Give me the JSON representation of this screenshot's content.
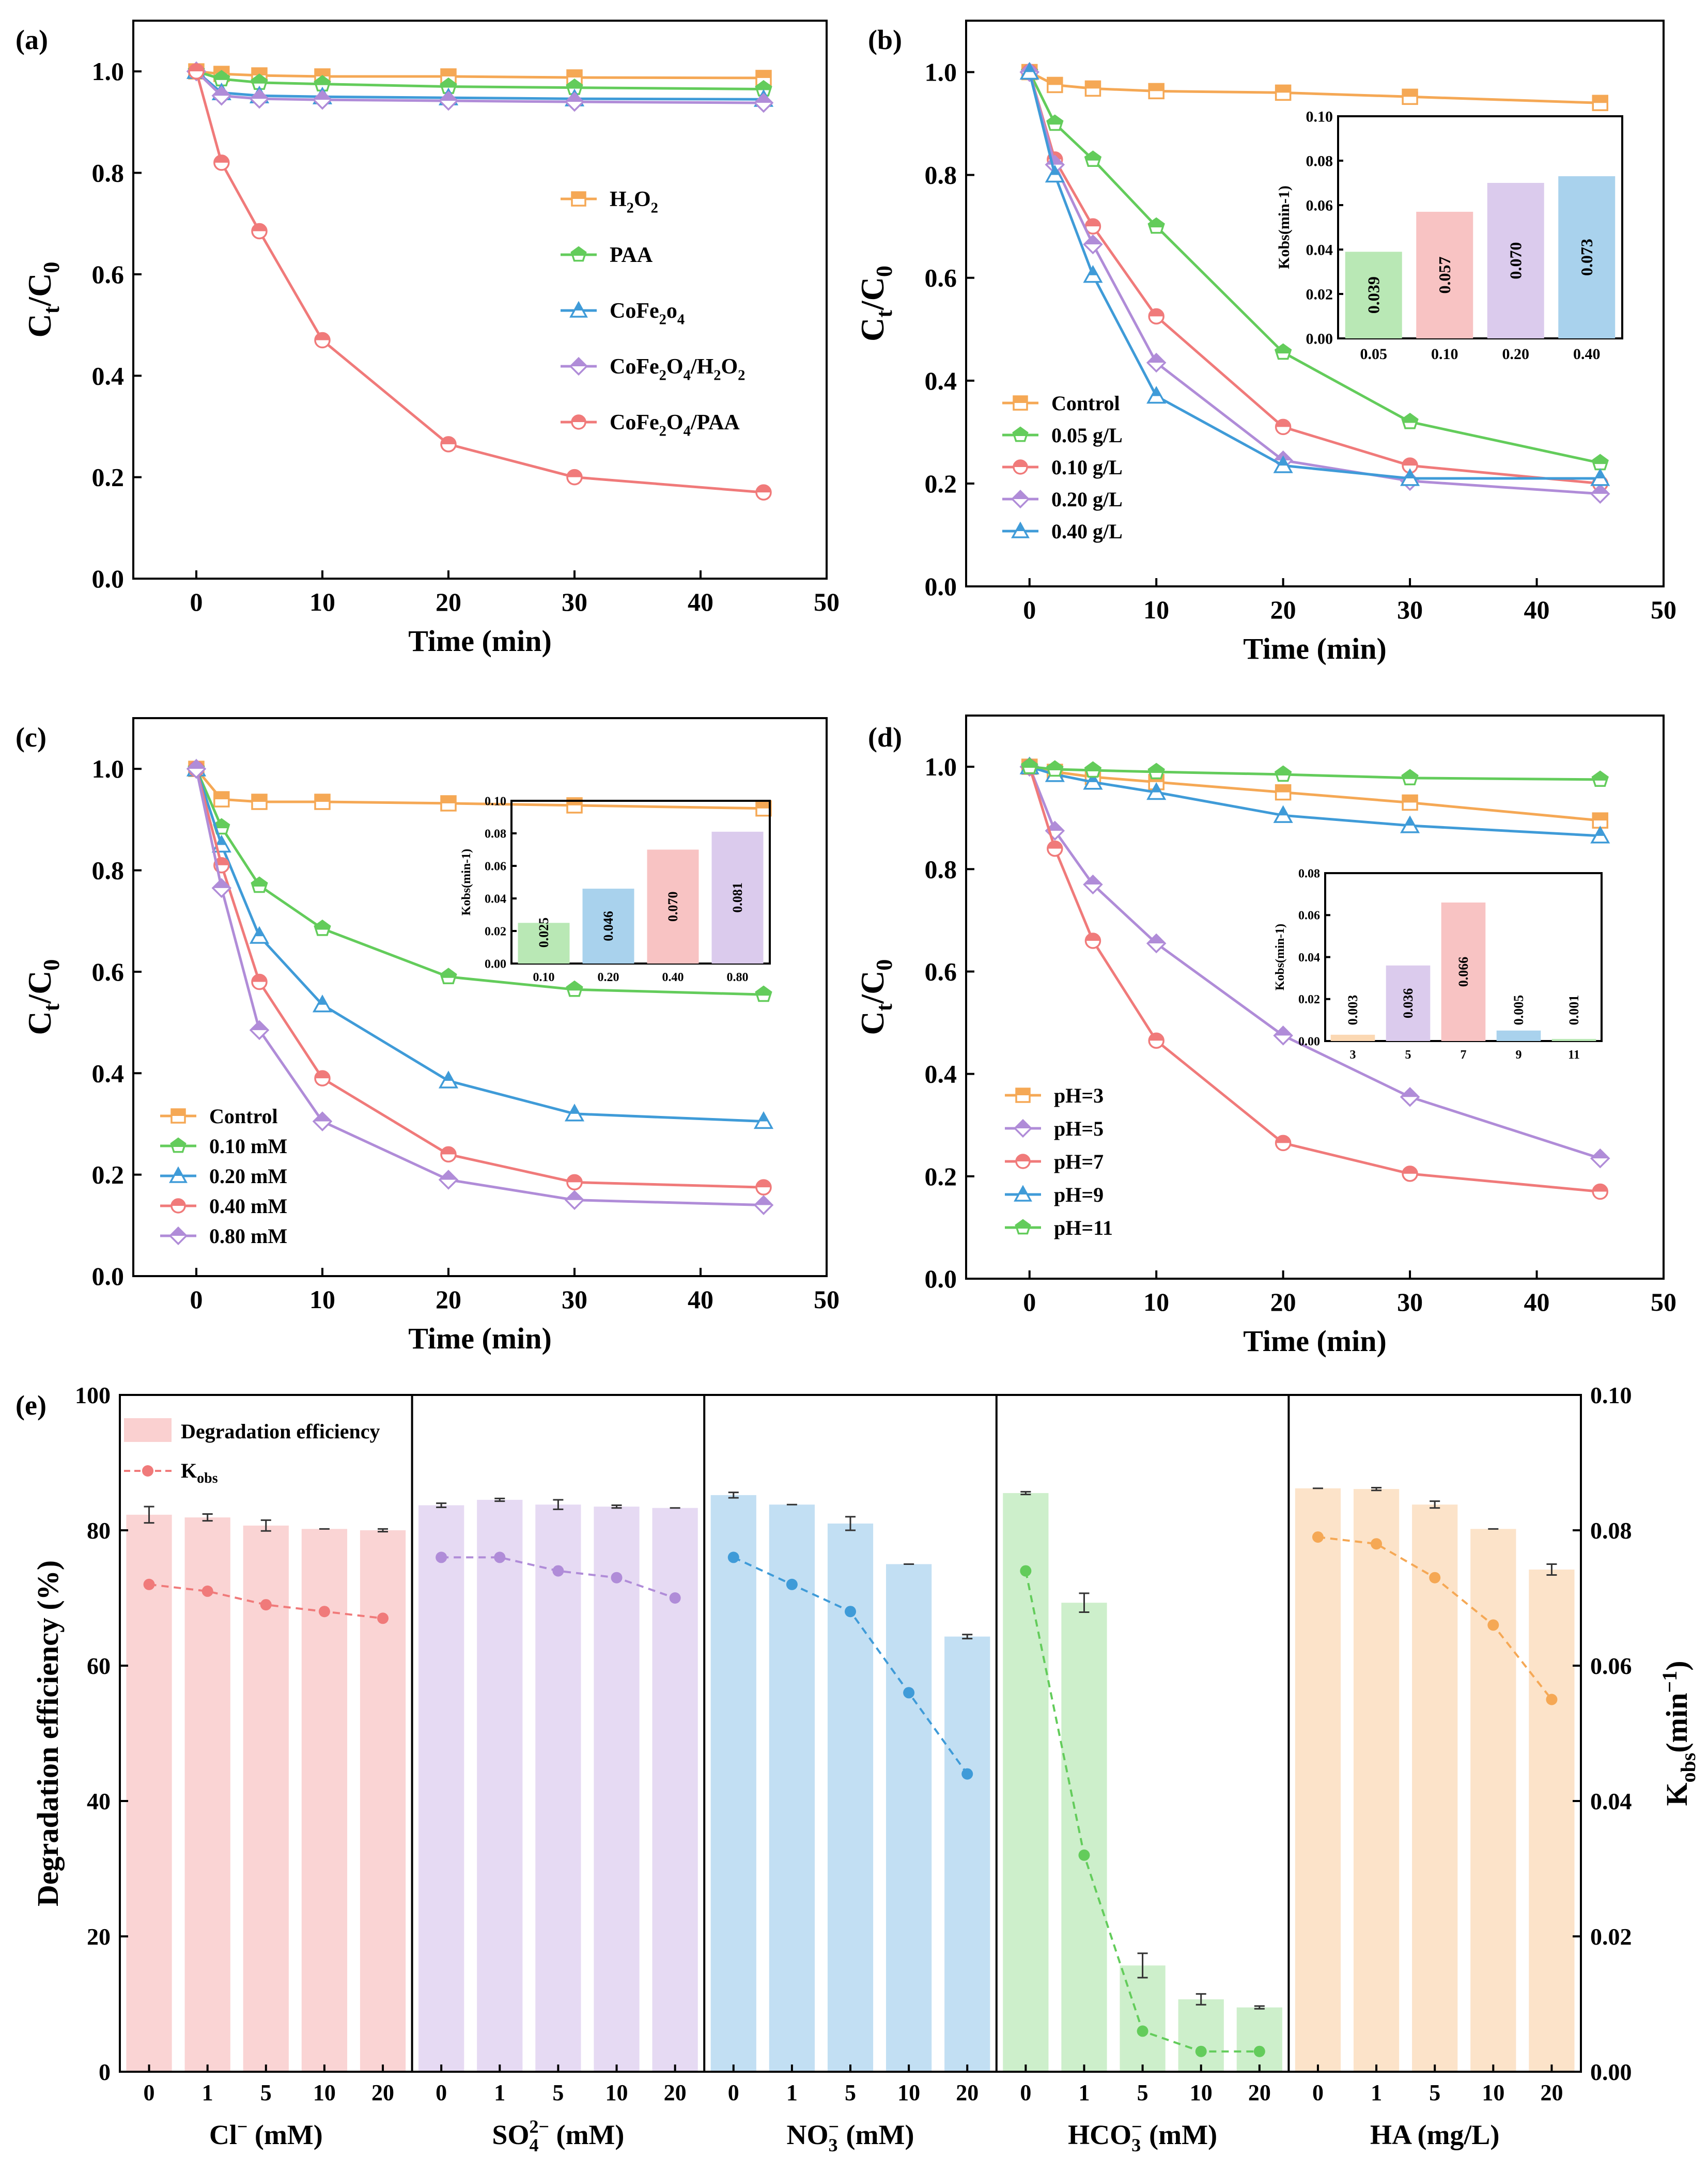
{
  "colors": {
    "orange": "#F5A855",
    "green": "#63CC5B",
    "blue": "#3F9BD8",
    "purple": "#B08CD8",
    "red": "#F07A7A"
  },
  "chart_data": [
    {
      "panel": "(a)",
      "type": "line",
      "ylabel": "Ct/C0",
      "xlabel": "Time (min)",
      "xlim": [
        -5,
        50
      ],
      "ylim": [
        0.0,
        1.1
      ],
      "xticks": [
        "0",
        "10",
        "20",
        "30",
        "40",
        "50"
      ],
      "yticks": [
        "0.0",
        "0.2",
        "0.4",
        "0.6",
        "0.8",
        "1.0"
      ],
      "x": [
        0,
        2,
        5,
        10,
        20,
        30,
        45
      ],
      "legend_position": "center-right",
      "series": [
        {
          "name": "H2O2",
          "color": "orange",
          "marker": "square",
          "values": [
            1.0,
            0.995,
            0.992,
            0.99,
            0.99,
            0.988,
            0.987
          ]
        },
        {
          "name": "PAA",
          "color": "green",
          "marker": "pentagon",
          "values": [
            1.0,
            0.985,
            0.978,
            0.975,
            0.97,
            0.968,
            0.965
          ]
        },
        {
          "name": "CoFe2o4",
          "color": "blue",
          "marker": "triangle",
          "values": [
            1.0,
            0.958,
            0.952,
            0.95,
            0.948,
            0.946,
            0.945
          ]
        },
        {
          "name": "CoFe2O4/H2O2",
          "color": "purple",
          "marker": "diamond",
          "values": [
            1.0,
            0.952,
            0.946,
            0.944,
            0.942,
            0.94,
            0.938
          ]
        },
        {
          "name": "CoFe2O4/PAA",
          "color": "red",
          "marker": "circle",
          "values": [
            1.0,
            0.82,
            0.685,
            0.47,
            0.265,
            0.2,
            0.17
          ]
        }
      ]
    },
    {
      "panel": "(b)",
      "type": "line",
      "ylabel": "Ct/C0",
      "xlabel": "Time (min)",
      "xlim": [
        -5,
        50
      ],
      "ylim": [
        0.0,
        1.1
      ],
      "xticks": [
        "0",
        "10",
        "20",
        "30",
        "40",
        "50"
      ],
      "yticks": [
        "0.0",
        "0.2",
        "0.4",
        "0.6",
        "0.8",
        "1.0"
      ],
      "x": [
        0,
        2,
        5,
        10,
        20,
        30,
        45
      ],
      "legend_position": "bottom-left",
      "series": [
        {
          "name": "Control",
          "color": "orange",
          "marker": "square",
          "values": [
            1.0,
            0.975,
            0.968,
            0.963,
            0.96,
            0.952,
            0.94
          ]
        },
        {
          "name": "0.05 g/L",
          "color": "green",
          "marker": "pentagon",
          "values": [
            1.0,
            0.9,
            0.83,
            0.7,
            0.455,
            0.32,
            0.24
          ]
        },
        {
          "name": "0.10 g/L",
          "color": "red",
          "marker": "circle",
          "values": [
            1.0,
            0.83,
            0.7,
            0.525,
            0.31,
            0.235,
            0.2
          ]
        },
        {
          "name": "0.20 g/L",
          "color": "purple",
          "marker": "diamond",
          "values": [
            1.0,
            0.82,
            0.665,
            0.435,
            0.245,
            0.205,
            0.18
          ]
        },
        {
          "name": "0.40 g/L",
          "color": "blue",
          "marker": "triangle",
          "values": [
            1.0,
            0.8,
            0.605,
            0.37,
            0.235,
            0.21,
            0.21
          ]
        }
      ],
      "inset": {
        "type": "bar",
        "ylabel": "Kobs(min-1)",
        "ylim": [
          0,
          0.1
        ],
        "yticks": [
          "0.00",
          "0.02",
          "0.04",
          "0.06",
          "0.08",
          "0.10"
        ],
        "categories": [
          "0.05",
          "0.10",
          "0.20",
          "0.40"
        ],
        "values": [
          0.039,
          0.057,
          0.07,
          0.073
        ],
        "labels": [
          "0.039",
          "0.057",
          "0.070",
          "0.073"
        ],
        "colors": [
          "green",
          "red",
          "purple",
          "blue"
        ]
      }
    },
    {
      "panel": "(c)",
      "type": "line",
      "ylabel": "Ct/C0",
      "xlabel": "Time (min)",
      "xlim": [
        -5,
        50
      ],
      "ylim": [
        0.0,
        1.1
      ],
      "xticks": [
        "0",
        "10",
        "20",
        "30",
        "40",
        "50"
      ],
      "yticks": [
        "0.0",
        "0.2",
        "0.4",
        "0.6",
        "0.8",
        "1.0"
      ],
      "x": [
        0,
        2,
        5,
        10,
        20,
        30,
        45
      ],
      "legend_position": "bottom-left",
      "series": [
        {
          "name": "Control",
          "color": "orange",
          "marker": "square",
          "values": [
            1.0,
            0.94,
            0.935,
            0.935,
            0.932,
            0.928,
            0.922
          ]
        },
        {
          "name": "0.10 mM",
          "color": "green",
          "marker": "pentagon",
          "values": [
            1.0,
            0.885,
            0.77,
            0.685,
            0.59,
            0.565,
            0.555
          ]
        },
        {
          "name": "0.20 mM",
          "color": "blue",
          "marker": "triangle",
          "values": [
            1.0,
            0.85,
            0.67,
            0.535,
            0.385,
            0.32,
            0.305
          ]
        },
        {
          "name": "0.40 mM",
          "color": "red",
          "marker": "circle",
          "values": [
            1.0,
            0.81,
            0.58,
            0.39,
            0.24,
            0.185,
            0.175
          ]
        },
        {
          "name": "0.80 mM",
          "color": "purple",
          "marker": "diamond",
          "values": [
            1.0,
            0.765,
            0.485,
            0.305,
            0.19,
            0.15,
            0.14
          ]
        }
      ],
      "inset": {
        "type": "bar",
        "ylabel": "Kobs(min-1)",
        "ylim": [
          0,
          0.1
        ],
        "yticks": [
          "0.00",
          "0.02",
          "0.04",
          "0.06",
          "0.08",
          "0.10"
        ],
        "categories": [
          "0.10",
          "0.20",
          "0.40",
          "0.80"
        ],
        "values": [
          0.025,
          0.046,
          0.07,
          0.081
        ],
        "labels": [
          "0.025",
          "0.046",
          "0.070",
          "0.081"
        ],
        "colors": [
          "green",
          "blue",
          "red",
          "purple"
        ]
      }
    },
    {
      "panel": "(d)",
      "type": "line",
      "ylabel": "Ct/C0",
      "xlabel": "Time (min)",
      "xlim": [
        -5,
        50
      ],
      "ylim": [
        0.0,
        1.1
      ],
      "xticks": [
        "0",
        "10",
        "20",
        "30",
        "40",
        "50"
      ],
      "yticks": [
        "0.0",
        "0.2",
        "0.4",
        "0.6",
        "0.8",
        "1.0"
      ],
      "x": [
        0,
        2,
        5,
        10,
        20,
        30,
        45
      ],
      "legend_position": "bottom-left",
      "series": [
        {
          "name": "pH=3",
          "color": "orange",
          "marker": "square",
          "values": [
            1.0,
            0.99,
            0.98,
            0.97,
            0.95,
            0.93,
            0.895
          ]
        },
        {
          "name": "pH=5",
          "color": "purple",
          "marker": "diamond",
          "values": [
            1.0,
            0.875,
            0.77,
            0.655,
            0.475,
            0.355,
            0.235
          ]
        },
        {
          "name": "pH=7",
          "color": "red",
          "marker": "circle",
          "values": [
            1.0,
            0.84,
            0.66,
            0.465,
            0.265,
            0.205,
            0.17
          ]
        },
        {
          "name": "pH=9",
          "color": "blue",
          "marker": "triangle",
          "values": [
            1.0,
            0.985,
            0.97,
            0.95,
            0.905,
            0.885,
            0.865
          ]
        },
        {
          "name": "pH=11",
          "color": "green",
          "marker": "pentagon",
          "values": [
            1.0,
            0.995,
            0.993,
            0.99,
            0.985,
            0.978,
            0.975
          ]
        }
      ],
      "inset": {
        "type": "bar",
        "ylabel": "Kobs(min-1)",
        "ylim": [
          0,
          0.08
        ],
        "yticks": [
          "0.00",
          "0.02",
          "0.04",
          "0.06",
          "0.08"
        ],
        "categories": [
          "3",
          "5",
          "7",
          "9",
          "11"
        ],
        "values": [
          0.003,
          0.036,
          0.066,
          0.005,
          0.001
        ],
        "labels": [
          "0.003",
          "0.036",
          "0.066",
          "0.005",
          "0.001"
        ],
        "colors": [
          "orange",
          "purple",
          "red",
          "blue",
          "green"
        ]
      }
    },
    {
      "panel": "(e)",
      "type": "bar",
      "ylabel": "Degradation efficiency (%)",
      "ylabel_right": "Kobs(min−1)",
      "ylim": [
        0,
        100
      ],
      "ylim_right": [
        0,
        0.1
      ],
      "yticks": [
        "0",
        "20",
        "40",
        "60",
        "80",
        "100"
      ],
      "yticks_right": [
        "0.00",
        "0.02",
        "0.04",
        "0.06",
        "0.08",
        "0.10"
      ],
      "legend": [
        "Degradation efficiency",
        "Kobs"
      ],
      "groups": [
        {
          "label": "Cl⁻ (mM)",
          "color": "red",
          "categories": [
            "0",
            "1",
            "5",
            "10",
            "20"
          ],
          "efficiency": [
            82.3,
            81.9,
            80.7,
            80.2,
            80.0
          ],
          "eff_err": [
            1.2,
            0.5,
            0.8,
            0,
            0.2
          ],
          "kobs": [
            0.072,
            0.071,
            0.069,
            0.068,
            0.067
          ]
        },
        {
          "label": "SO₄²⁻ (mM)",
          "color": "purple",
          "categories": [
            "0",
            "1",
            "5",
            "10",
            "20"
          ],
          "efficiency": [
            83.7,
            84.5,
            83.8,
            83.5,
            83.3
          ],
          "eff_err": [
            0.3,
            0.2,
            0.7,
            0.2,
            0
          ],
          "kobs": [
            0.076,
            0.076,
            0.074,
            0.073,
            0.07
          ]
        },
        {
          "label": "NO₃⁻ (mM)",
          "color": "blue",
          "categories": [
            "0",
            "1",
            "5",
            "10",
            "20"
          ],
          "efficiency": [
            85.2,
            83.8,
            81.0,
            75.0,
            64.3
          ],
          "eff_err": [
            0.4,
            0,
            1.0,
            0,
            0.3
          ],
          "kobs": [
            0.076,
            0.072,
            0.068,
            0.056,
            0.044
          ]
        },
        {
          "label": "HCO₃⁻ (mM)",
          "color": "green",
          "categories": [
            "0",
            "1",
            "5",
            "10",
            "20"
          ],
          "efficiency": [
            85.5,
            69.3,
            15.7,
            10.7,
            9.5
          ],
          "eff_err": [
            0.2,
            1.4,
            1.8,
            0.8,
            0.2
          ],
          "kobs": [
            0.074,
            0.032,
            0.006,
            0.003,
            0.003
          ]
        },
        {
          "label": "HA (mg/L)",
          "color": "orange",
          "categories": [
            "0",
            "1",
            "5",
            "10",
            "20"
          ],
          "efficiency": [
            86.2,
            86.1,
            83.8,
            80.2,
            74.2
          ],
          "eff_err": [
            0,
            0.2,
            0.5,
            0,
            0.8
          ],
          "kobs": [
            0.079,
            0.078,
            0.073,
            0.066,
            0.055
          ]
        }
      ]
    }
  ]
}
